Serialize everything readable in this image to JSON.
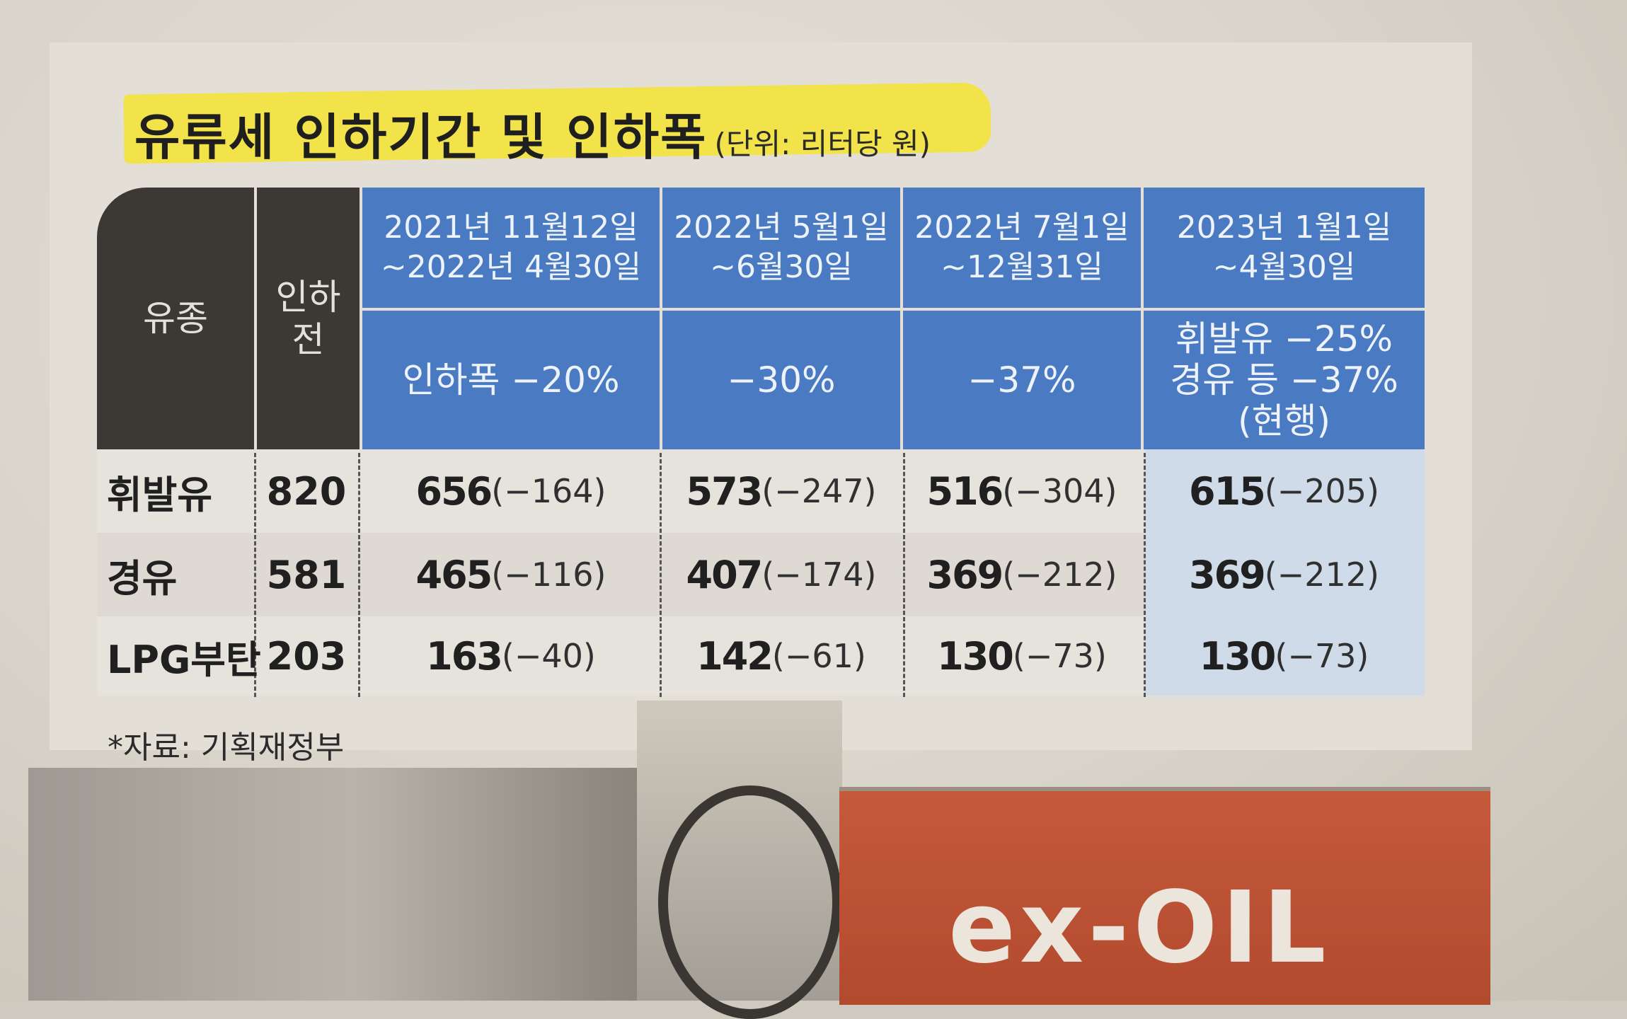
{
  "title": {
    "main": "유류세 인하기간 및 인하폭",
    "unit": "(단위: 리터당 원)"
  },
  "table": {
    "header_fuel": "유종",
    "header_before": "인하\n전",
    "periods": [
      {
        "period": "2021년 11월12일\n~2022년 4월30일",
        "cut": "인하폭 −20%"
      },
      {
        "period": "2022년 5월1일\n~6월30일",
        "cut": "−30%"
      },
      {
        "period": "2022년 7월1일\n~12월31일",
        "cut": "−37%"
      },
      {
        "period": "2023년 1월1일\n~4월30일",
        "cut": "휘발유 −25%\n경유 등 −37%\n(현행)"
      }
    ],
    "rows": [
      {
        "fuel": "휘발유",
        "before": "820",
        "values": [
          {
            "main": "656",
            "diff": "(−164)"
          },
          {
            "main": "573",
            "diff": "(−247)"
          },
          {
            "main": "516",
            "diff": "(−304)"
          },
          {
            "main": "615",
            "diff": "(−205)"
          }
        ]
      },
      {
        "fuel": "경유",
        "before": "581",
        "values": [
          {
            "main": "465",
            "diff": "(−116)"
          },
          {
            "main": "407",
            "diff": "(−174)"
          },
          {
            "main": "369",
            "diff": "(−212)"
          },
          {
            "main": "369",
            "diff": "(−212)"
          }
        ]
      },
      {
        "fuel": "LPG부탄",
        "before": "203",
        "values": [
          {
            "main": "163",
            "diff": "(−40)"
          },
          {
            "main": "142",
            "diff": "(−61)"
          },
          {
            "main": "130",
            "diff": "(−73)"
          },
          {
            "main": "130",
            "diff": "(−73)"
          }
        ]
      }
    ]
  },
  "source": "*자료: 기획재정부",
  "photo": {
    "sign_text": "ex-OIL"
  },
  "colors": {
    "header_dark": "#3c3833",
    "header_blue": "#4a7bc2",
    "highlight": "#f2e34a",
    "current_column": "#cfdbe8",
    "sign": "#c55a3b"
  }
}
